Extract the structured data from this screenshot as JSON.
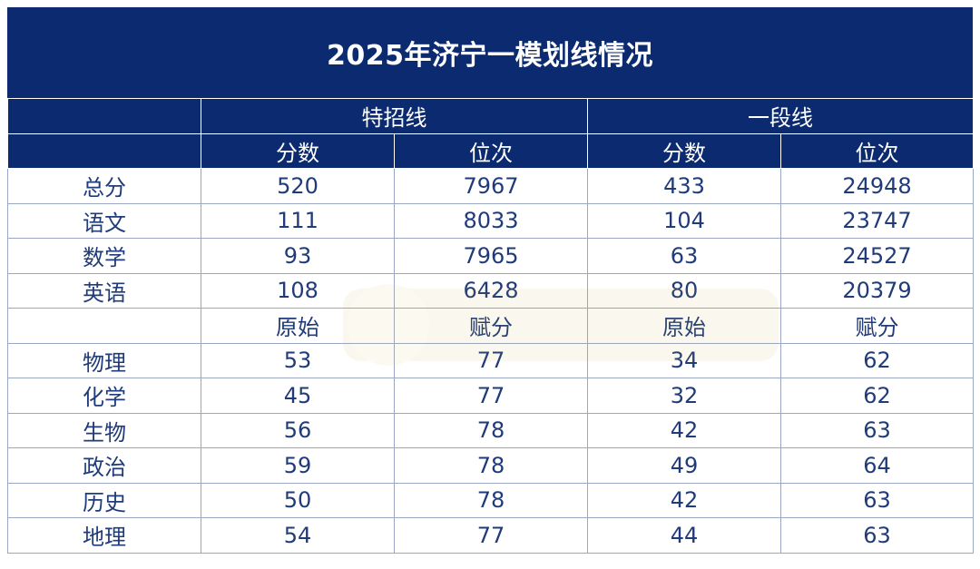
{
  "title": "2025年济宁一模划线情况",
  "groups": [
    "特招线",
    "一段线"
  ],
  "col_headers": [
    "分数",
    "位次",
    "分数",
    "位次"
  ],
  "main_rows": [
    {
      "label": "总分",
      "values": [
        "520",
        "7967",
        "433",
        "24948"
      ]
    },
    {
      "label": "语文",
      "values": [
        "111",
        "8033",
        "104",
        "23747"
      ]
    },
    {
      "label": "数学",
      "values": [
        "93",
        "7965",
        "63",
        "24527"
      ]
    },
    {
      "label": "英语",
      "values": [
        "108",
        "6428",
        "80",
        "20379"
      ]
    }
  ],
  "sub_headers": [
    "原始",
    "赋分",
    "原始",
    "赋分"
  ],
  "elective_rows": [
    {
      "label": "物理",
      "values": [
        "53",
        "77",
        "34",
        "62"
      ]
    },
    {
      "label": "化学",
      "values": [
        "45",
        "77",
        "32",
        "62"
      ]
    },
    {
      "label": "生物",
      "values": [
        "56",
        "78",
        "42",
        "63"
      ]
    },
    {
      "label": "政治",
      "values": [
        "59",
        "78",
        "49",
        "64"
      ]
    },
    {
      "label": "历史",
      "values": [
        "50",
        "78",
        "42",
        "63"
      ]
    },
    {
      "label": "地理",
      "values": [
        "54",
        "77",
        "44",
        "63"
      ]
    }
  ],
  "colors": {
    "header_bg": "#0b2a6f",
    "text": "#1f3b7a",
    "grid": "#9aa7c2"
  }
}
